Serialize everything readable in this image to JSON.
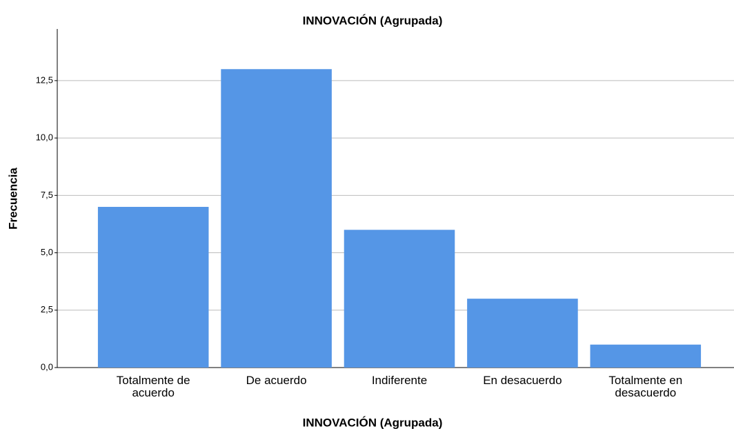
{
  "chart_data": {
    "type": "bar",
    "title": "INNOVACIÓN (Agrupada)",
    "x_label": "INNOVACIÓN (Agrupada)",
    "y_label": "Frecuencia",
    "categories": [
      "Totalmente de acuerdo",
      "De acuerdo",
      "Indiferente",
      "En desacuerdo",
      "Totalmente en desacuerdo"
    ],
    "values": [
      7,
      13,
      6,
      3,
      1
    ],
    "color": "#5596e6",
    "ylim": [
      0,
      14.75
    ],
    "yticks": [
      {
        "value": 0,
        "label": "0,0"
      },
      {
        "value": 2.5,
        "label": "2,5"
      },
      {
        "value": 5,
        "label": "5,0"
      },
      {
        "value": 7.5,
        "label": "7,5"
      },
      {
        "value": 10,
        "label": "10,0"
      },
      {
        "value": 12.5,
        "label": "12,5"
      }
    ],
    "grid": true
  }
}
